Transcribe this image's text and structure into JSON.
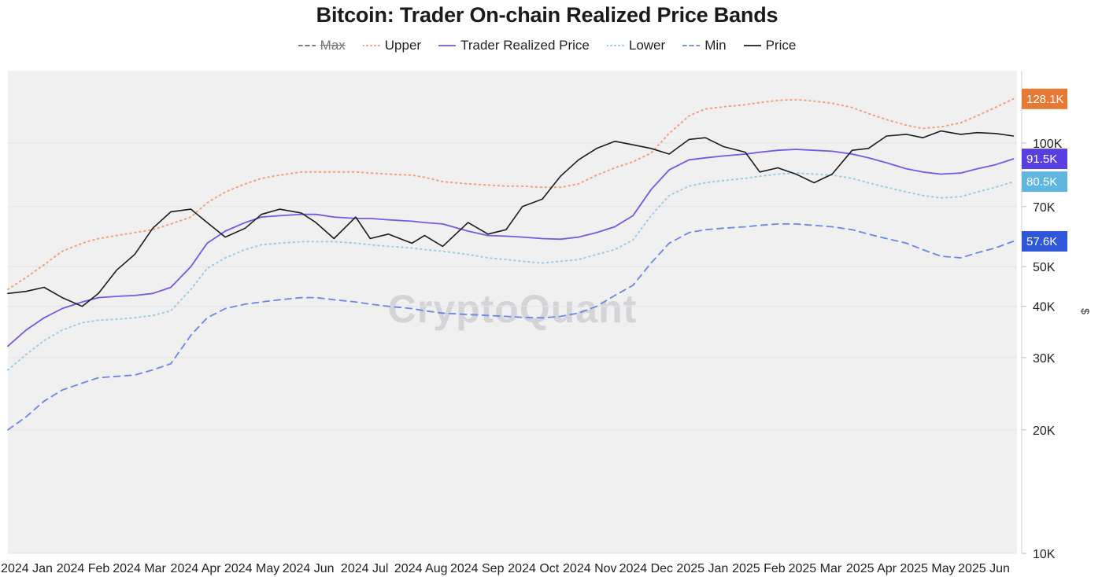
{
  "chart_data": {
    "type": "line",
    "title": "Bitcoin: Trader On-chain Realized Price Bands",
    "watermark": "CryptoQuant",
    "ylabel": "$",
    "yscale": "log",
    "ylim": [
      10000,
      150000
    ],
    "y_ticks": [
      {
        "value": 10000,
        "label": "10K"
      },
      {
        "value": 20000,
        "label": "20K"
      },
      {
        "value": 30000,
        "label": "30K"
      },
      {
        "value": 40000,
        "label": "40K"
      },
      {
        "value": 50000,
        "label": "50K"
      },
      {
        "value": 70000,
        "label": "70K"
      },
      {
        "value": 100000,
        "label": "100K"
      }
    ],
    "x_ticks": [
      "2024 Jan",
      "2024 Feb",
      "2024 Mar",
      "2024 Apr",
      "2024 May",
      "2024 Jun",
      "2024 Jul",
      "2024 Aug",
      "2024 Sep",
      "2024 Oct",
      "2024 Nov",
      "2024 Dec",
      "2025 Jan",
      "2025 Feb",
      "2025 Mar",
      "2025 Apr",
      "2025 May",
      "2025 Jun"
    ],
    "x_range_days": [
      -10,
      547
    ],
    "legend": [
      {
        "name": "Max",
        "color": "#6b6b6b",
        "style": "dashed",
        "hidden": true
      },
      {
        "name": "Upper",
        "color": "#f2a07b",
        "style": "dotted",
        "hidden": false
      },
      {
        "name": "Trader Realized Price",
        "color": "#6a5de6",
        "style": "solid",
        "hidden": false
      },
      {
        "name": "Lower",
        "color": "#9ccbe8",
        "style": "dotted",
        "hidden": false
      },
      {
        "name": "Min",
        "color": "#6b86e6",
        "style": "dashed",
        "hidden": false
      },
      {
        "name": "Price",
        "color": "#1c1c1c",
        "style": "solid",
        "hidden": false
      }
    ],
    "x_days": [
      -10,
      0,
      10,
      20,
      31,
      40,
      50,
      60,
      70,
      80,
      91,
      100,
      110,
      121,
      130,
      140,
      152,
      160,
      170,
      182,
      190,
      200,
      213,
      220,
      230,
      244,
      255,
      265,
      274,
      285,
      295,
      305,
      315,
      325,
      335,
      345,
      355,
      366,
      375,
      385,
      397,
      405,
      415,
      425,
      435,
      445,
      456,
      465,
      475,
      486,
      495,
      505,
      516,
      525,
      535,
      545
    ],
    "series": [
      {
        "name": "Upper",
        "values": [
          44000,
          47000,
          50500,
          54500,
          57000,
          58500,
          59500,
          60500,
          61500,
          63500,
          66000,
          71500,
          76000,
          79500,
          82000,
          83500,
          85000,
          85000,
          85000,
          85000,
          84500,
          84000,
          83500,
          82500,
          80500,
          79500,
          79000,
          78500,
          78500,
          78000,
          78000,
          79500,
          83500,
          87000,
          90000,
          94500,
          105500,
          116500,
          121000,
          122500,
          124000,
          125500,
          127000,
          127500,
          126500,
          125000,
          122000,
          118000,
          114000,
          110500,
          108500,
          109500,
          112000,
          116500,
          122000,
          128100
        ]
      },
      {
        "name": "Trader Realized Price",
        "values": [
          32000,
          35000,
          37500,
          39500,
          41000,
          42000,
          42300,
          42500,
          43000,
          44500,
          50000,
          57000,
          61000,
          64000,
          66000,
          66500,
          67000,
          67000,
          66000,
          65500,
          65500,
          65000,
          64500,
          64000,
          63500,
          61000,
          59500,
          59300,
          59000,
          58500,
          58300,
          59000,
          60500,
          62500,
          66500,
          77000,
          86000,
          91000,
          92000,
          93000,
          94000,
          95000,
          96000,
          96500,
          96000,
          95500,
          94000,
          92000,
          89500,
          86500,
          85000,
          84000,
          84500,
          86500,
          88500,
          91500
        ]
      },
      {
        "name": "Lower",
        "values": [
          28000,
          30500,
          33000,
          35000,
          36500,
          37000,
          37200,
          37500,
          38000,
          39000,
          44000,
          49500,
          52500,
          55000,
          56500,
          57000,
          57500,
          57500,
          57500,
          57000,
          56500,
          56000,
          55500,
          55000,
          54500,
          53500,
          52500,
          52000,
          51500,
          51000,
          51500,
          52000,
          53500,
          55000,
          58000,
          66500,
          74500,
          78500,
          80000,
          81000,
          82000,
          83000,
          84000,
          84500,
          84000,
          83500,
          82000,
          80000,
          78000,
          76000,
          74500,
          73500,
          74000,
          76000,
          78000,
          80500
        ]
      },
      {
        "name": "Min",
        "values": [
          20000,
          21500,
          23500,
          25000,
          26000,
          26800,
          27000,
          27200,
          28000,
          29000,
          34000,
          37500,
          39500,
          40500,
          41000,
          41500,
          42000,
          42000,
          41500,
          41000,
          40500,
          40000,
          39500,
          39000,
          38500,
          38200,
          38000,
          37800,
          37600,
          37500,
          37800,
          38500,
          40000,
          42500,
          45000,
          51000,
          57000,
          60500,
          61500,
          62000,
          62500,
          63000,
          63500,
          63500,
          63000,
          62500,
          61500,
          60000,
          58500,
          57000,
          55000,
          53000,
          52500,
          54000,
          55500,
          57600
        ]
      },
      {
        "name": "Price",
        "values": [
          43000,
          43500,
          44500,
          42000,
          40000,
          43000,
          49000,
          53500,
          62000,
          68000,
          69000,
          64000,
          59000,
          62000,
          67000,
          69000,
          67500,
          64000,
          58500,
          66000,
          58500,
          60000,
          57000,
          59500,
          56000,
          64000,
          60000,
          61500,
          70000,
          73000,
          83000,
          91000,
          97000,
          101000,
          99000,
          97000,
          94000,
          102000,
          103000,
          98000,
          95000,
          85000,
          87000,
          84000,
          80000,
          84000,
          96000,
          97000,
          104000,
          105000,
          103000,
          107000,
          105000,
          106000,
          105500,
          104000
        ]
      }
    ],
    "value_tags": [
      {
        "series": "Upper",
        "label": "128.1K",
        "value": 128100,
        "color": "#e67a35"
      },
      {
        "series": "Trader Realized Price",
        "label": "91.5K",
        "value": 91500,
        "color": "#5a3fe0"
      },
      {
        "series": "Lower",
        "label": "80.5K",
        "value": 80500,
        "color": "#5fb7e0"
      },
      {
        "series": "Min",
        "label": "57.6K",
        "value": 57600,
        "color": "#2f57d9"
      }
    ]
  }
}
